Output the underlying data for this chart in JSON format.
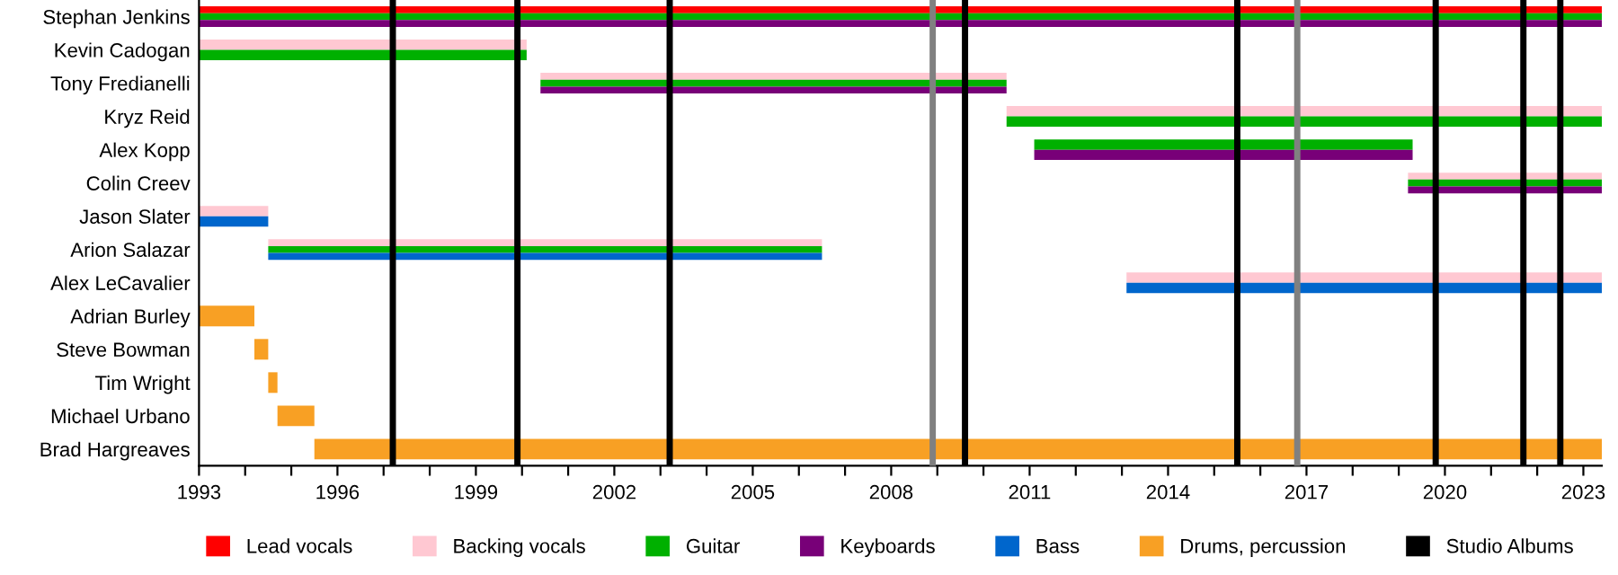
{
  "chart_data": {
    "type": "bar",
    "orientation": "horizontal",
    "legend": "bottom",
    "grid": false,
    "categories": [
      "Stephan Jenkins",
      "Kevin Cadogan",
      "Tony Fredianelli",
      "Kryz Reid",
      "Alex Kopp",
      "Colin Creev",
      "Jason Slater",
      "Arion Salazar",
      "Alex LeCavalier",
      "Adrian Burley",
      "Steve Bowman",
      "Tim Wright",
      "Michael Urbano",
      "Brad Hargreaves"
    ],
    "series": [
      {
        "name": "Lead vocals",
        "color": "#ff0000",
        "base": [
          1993,
          null,
          null,
          null,
          null,
          null,
          null,
          null,
          null,
          null,
          null,
          null,
          null,
          null
        ],
        "values": [
          30.4,
          null,
          null,
          null,
          null,
          null,
          null,
          null,
          null,
          null,
          null,
          null,
          null,
          null
        ]
      },
      {
        "name": "Backing vocals",
        "color": "#ffc8d2",
        "base": [
          null,
          1993,
          2000.4,
          2010.5,
          null,
          2019.2,
          1993,
          1994.5,
          2013.1,
          null,
          null,
          null,
          null,
          null
        ],
        "values": [
          null,
          7.1,
          10.1,
          12.9,
          null,
          4.2,
          1.5,
          12.0,
          10.3,
          null,
          null,
          null,
          null,
          null
        ]
      },
      {
        "name": "Guitar",
        "color": "#00b000",
        "base": [
          1993,
          1993,
          2000.4,
          2010.5,
          2011.1,
          2019.2,
          null,
          1994.5,
          null,
          null,
          null,
          null,
          null,
          null
        ],
        "values": [
          30.4,
          7.1,
          10.1,
          12.9,
          8.2,
          4.2,
          null,
          12.0,
          null,
          null,
          null,
          null,
          null,
          null
        ]
      },
      {
        "name": "Keyboards",
        "color": "#780078",
        "base": [
          1993,
          null,
          2000.4,
          null,
          2011.1,
          2019.2,
          null,
          null,
          null,
          null,
          null,
          null,
          null,
          null
        ],
        "values": [
          30.4,
          null,
          10.1,
          null,
          8.2,
          4.2,
          null,
          null,
          null,
          null,
          null,
          null,
          null,
          null
        ]
      },
      {
        "name": "Bass",
        "color": "#0066cc",
        "base": [
          null,
          null,
          null,
          null,
          null,
          null,
          1993,
          1994.5,
          2013.1,
          null,
          null,
          null,
          null,
          null
        ],
        "values": [
          null,
          null,
          null,
          null,
          null,
          null,
          1.5,
          12.0,
          10.3,
          null,
          null,
          null,
          null,
          null
        ]
      },
      {
        "name": "Drums, percussion",
        "color": "#f8a024",
        "base": [
          null,
          null,
          null,
          null,
          null,
          null,
          null,
          null,
          null,
          1993,
          1994.2,
          1994.5,
          1994.7,
          1995.5
        ],
        "values": [
          null,
          null,
          null,
          null,
          null,
          null,
          null,
          null,
          null,
          1.2,
          0.3,
          0.2,
          0.8,
          27.9
        ]
      }
    ],
    "ref_lines": [
      {
        "axis": "x",
        "value": 1997.2,
        "label": "Studio Albums",
        "color": "#000000"
      },
      {
        "axis": "x",
        "value": 1999.9,
        "color": "#000000"
      },
      {
        "axis": "x",
        "value": 2003.2,
        "color": "#000000"
      },
      {
        "axis": "x",
        "value": 2008.9,
        "color": "#808080"
      },
      {
        "axis": "x",
        "value": 2009.6,
        "color": "#000000"
      },
      {
        "axis": "x",
        "value": 2015.5,
        "color": "#000000"
      },
      {
        "axis": "x",
        "value": 2016.8,
        "color": "#808080"
      },
      {
        "axis": "x",
        "value": 2019.8,
        "color": "#000000"
      },
      {
        "axis": "x",
        "value": 2021.7,
        "color": "#000000"
      },
      {
        "axis": "x",
        "value": 2022.5,
        "color": "#000000"
      }
    ],
    "xlim": [
      1993,
      2023.4
    ],
    "xticks": [
      1993,
      {
        "value": 1994,
        "label": null
      },
      {
        "value": 1995,
        "label": null
      },
      1996,
      {
        "value": 1997,
        "label": null
      },
      {
        "value": 1998,
        "label": null
      },
      1999,
      {
        "value": 2000,
        "label": null
      },
      {
        "value": 2001,
        "label": null
      },
      2002,
      {
        "value": 2003,
        "label": null
      },
      {
        "value": 2004,
        "label": null
      },
      2005,
      {
        "value": 2006,
        "label": null
      },
      {
        "value": 2007,
        "label": null
      },
      2008,
      {
        "value": 2009,
        "label": null
      },
      {
        "value": 2010,
        "label": null
      },
      2011,
      {
        "value": 2012,
        "label": null
      },
      {
        "value": 2013,
        "label": null
      },
      2014,
      {
        "value": 2015,
        "label": null
      },
      {
        "value": 2016,
        "label": null
      },
      2017,
      {
        "value": 2018,
        "label": null
      },
      {
        "value": 2019,
        "label": null
      },
      2020,
      {
        "value": 2021,
        "label": null
      },
      {
        "value": 2022,
        "label": null
      },
      2023
    ]
  }
}
